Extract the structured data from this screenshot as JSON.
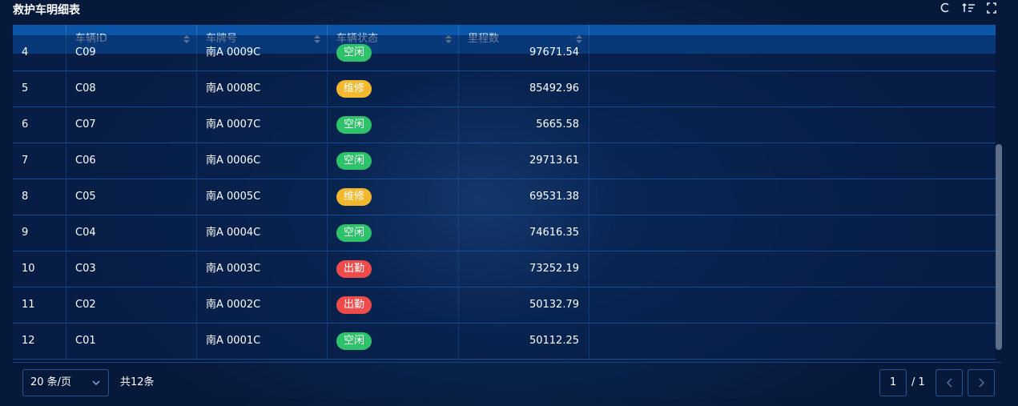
{
  "header": {
    "title": "救护车明细表"
  },
  "table": {
    "columns": [
      "车辆ID",
      "车牌号",
      "车辆状态",
      "里程数"
    ],
    "rows": [
      {
        "no": 4,
        "id": "C09",
        "plate": "南A 0009C",
        "status": "空闲",
        "status_color": "#2ec26a",
        "mileage": 97671.54
      },
      {
        "no": 5,
        "id": "C08",
        "plate": "南A 0008C",
        "status": "维修",
        "status_color": "#f4b82e",
        "mileage": 85492.96
      },
      {
        "no": 6,
        "id": "C07",
        "plate": "南A 0007C",
        "status": "空闲",
        "status_color": "#2ec26a",
        "mileage": 5665.58
      },
      {
        "no": 7,
        "id": "C06",
        "plate": "南A 0006C",
        "status": "空闲",
        "status_color": "#2ec26a",
        "mileage": 29713.61
      },
      {
        "no": 8,
        "id": "C05",
        "plate": "南A 0005C",
        "status": "维修",
        "status_color": "#f4b82e",
        "mileage": 69531.38
      },
      {
        "no": 9,
        "id": "C04",
        "plate": "南A 0004C",
        "status": "空闲",
        "status_color": "#2ec26a",
        "mileage": 74616.35
      },
      {
        "no": 10,
        "id": "C03",
        "plate": "南A 0003C",
        "status": "出勤",
        "status_color": "#ef4b4b",
        "mileage": 73252.19
      },
      {
        "no": 11,
        "id": "C02",
        "plate": "南A 0002C",
        "status": "出勤",
        "status_color": "#ef4b4b",
        "mileage": 50132.79
      },
      {
        "no": 12,
        "id": "C01",
        "plate": "南A 0001C",
        "status": "空闲",
        "status_color": "#2ec26a",
        "mileage": 50112.25
      }
    ]
  },
  "footer": {
    "page_size": "20 条/页",
    "total": "共12条",
    "page": 1,
    "page_count": "/ 1"
  }
}
